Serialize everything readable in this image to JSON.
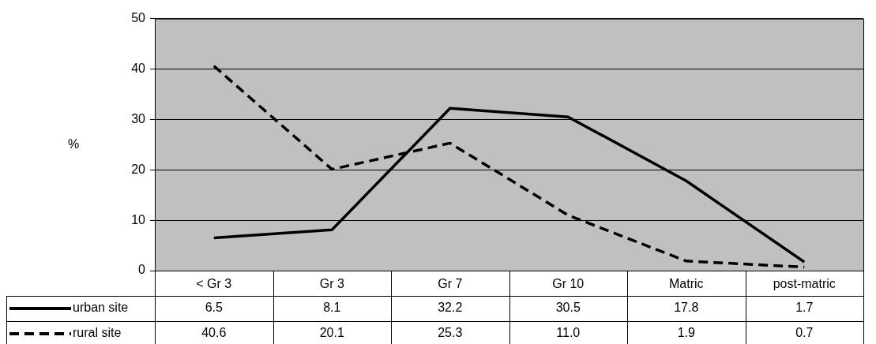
{
  "chart_data": {
    "type": "line",
    "ylabel": "%",
    "categories": [
      "< Gr 3",
      "Gr 3",
      "Gr 7",
      "Gr 10",
      "Matric",
      "post-matric"
    ],
    "series": [
      {
        "name": "urban site",
        "color": "#000000",
        "line_style": "solid",
        "values": [
          6.5,
          8.1,
          32.2,
          30.5,
          17.8,
          1.7
        ],
        "value_labels": [
          "6.5",
          "8.1",
          "32.2",
          "30.5",
          "17.8",
          "1.7"
        ]
      },
      {
        "name": "rural site",
        "color": "#000000",
        "line_style": "dashed",
        "values": [
          40.6,
          20.1,
          25.3,
          11.0,
          1.9,
          0.7
        ],
        "value_labels": [
          "40.6",
          "20.1",
          "25.3",
          "11.0",
          "1.9",
          "0.7"
        ]
      }
    ],
    "ylim": [
      0,
      50
    ],
    "yticks": [
      0,
      10,
      20,
      30,
      40,
      50
    ],
    "grid": "y",
    "legend": "bottom left",
    "marker": "none"
  }
}
